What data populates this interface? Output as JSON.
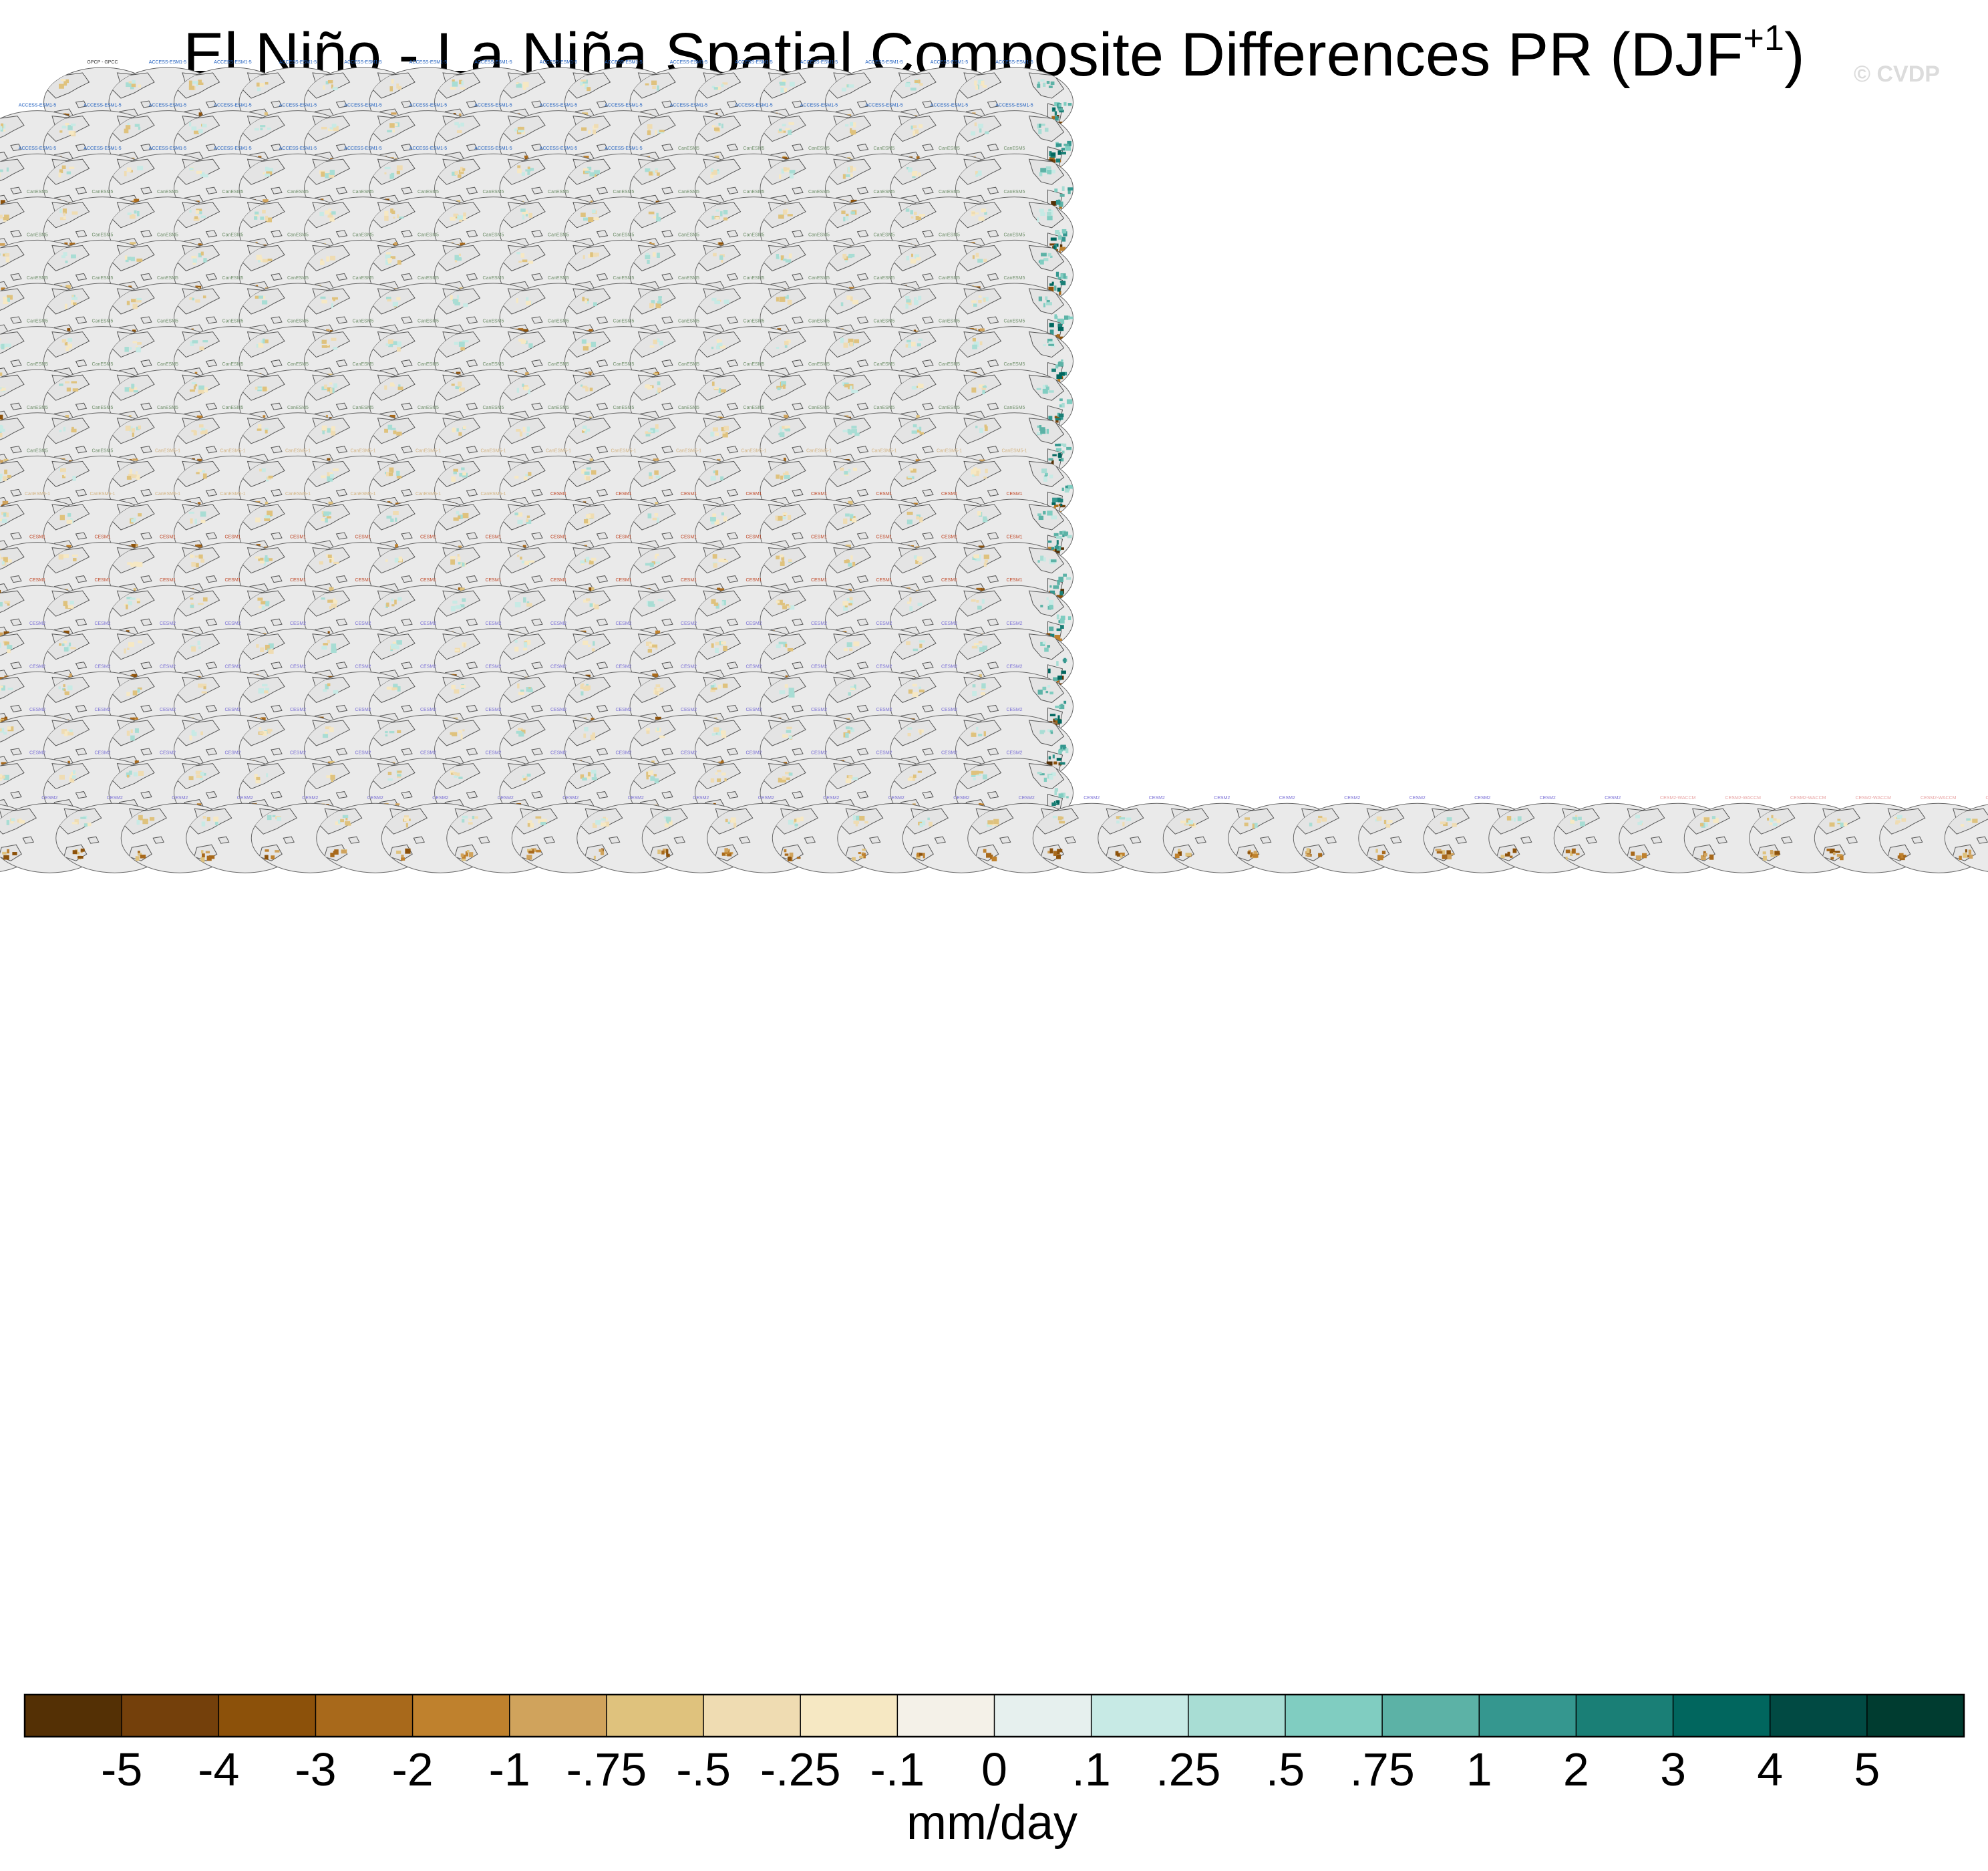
{
  "title": {
    "main": "El Niño - La Niña Spatial Composite Differences PR (DJF",
    "superscript": "+1",
    "close": ")"
  },
  "watermark": "© CVDP",
  "panels": {
    "reference_label": "GPCP - GPCC",
    "groups": [
      {
        "prefix": "ACCESS-ESM1-5",
        "count": 40,
        "color": "#1f5fbf"
      },
      {
        "prefix": "CanESM5",
        "count": 104,
        "color": "#6f8f6a"
      },
      {
        "prefix": "CanESM5-1",
        "count": 22,
        "color": "#d4b483"
      },
      {
        "prefix": "CESM1",
        "count": 40,
        "color": "#c24a2a"
      },
      {
        "prefix": "CESM2",
        "count": 100,
        "color": "#7a6fd6"
      },
      {
        "prefix": "CESM2-WACCM",
        "count": 16,
        "color": "#e8a4a4"
      }
    ],
    "land_color": "#e4e4e4",
    "coast_color": "#555555"
  },
  "chart_data": {
    "type": "heatmap",
    "title": "El Niño - La Niña Spatial Composite Differences PR (DJF+1)",
    "colorbar": {
      "label": "mm/day",
      "tick_labels": [
        "-5",
        "-4",
        "-3",
        "-2",
        "-1",
        "-.75",
        "-.5",
        "-.25",
        "-.1",
        "0",
        ".1",
        ".25",
        ".5",
        ".75",
        "1",
        "2",
        "3",
        "4",
        "5"
      ],
      "colors": [
        "#543005",
        "#74400b",
        "#8c510a",
        "#a8691b",
        "#bf812d",
        "#d0a35c",
        "#dfc27d",
        "#efdcb2",
        "#f6e8c3",
        "#f4f1e8",
        "#e6f0ee",
        "#c7eae5",
        "#a8ddd4",
        "#80cdc1",
        "#5cb2a6",
        "#35978f",
        "#1a7f76",
        "#01665e",
        "#014a43",
        "#003c30"
      ]
    }
  }
}
